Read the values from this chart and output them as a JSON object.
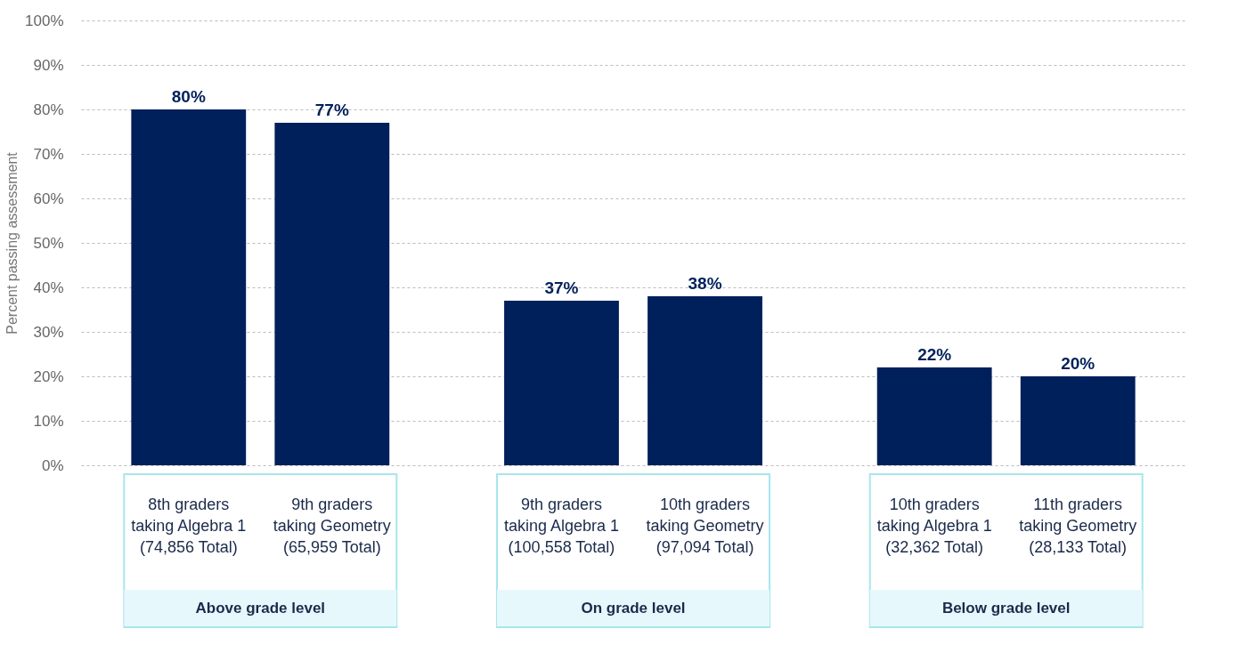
{
  "chart_data": {
    "type": "bar",
    "ylabel": "Percent passing assessment",
    "categories": [
      "8th graders\ntaking Algebra 1\n(74,856 Total)",
      "9th graders\ntaking Geometry\n(65,959 Total)",
      "9th graders\ntaking Algebra 1\n(100,558 Total)",
      "10th graders\ntaking Geometry\n(97,094 Total)",
      "10th graders\ntaking Algebra 1\n(32,362 Total)",
      "11th graders\ntaking Geometry\n(28,133 Total)"
    ],
    "values": [
      80,
      77,
      37,
      38,
      22,
      20
    ],
    "value_labels": [
      "80%",
      "77%",
      "37%",
      "38%",
      "22%",
      "20%"
    ],
    "color": "#00205b",
    "ylim": [
      0,
      100
    ],
    "yticks": [
      {
        "value": 0,
        "label": "0%"
      },
      {
        "value": 10,
        "label": "10%"
      },
      {
        "value": 20,
        "label": "20%"
      },
      {
        "value": 30,
        "label": "30%"
      },
      {
        "value": 40,
        "label": "40%"
      },
      {
        "value": 50,
        "label": "50%"
      },
      {
        "value": 60,
        "label": "60%"
      },
      {
        "value": 70,
        "label": "70%"
      },
      {
        "value": 80,
        "label": "80%"
      },
      {
        "value": 90,
        "label": "90%"
      },
      {
        "value": 100,
        "label": "100%"
      }
    ],
    "grid": "y",
    "annotations": [
      "Above grade level",
      "On grade level",
      "Below grade level"
    ]
  }
}
